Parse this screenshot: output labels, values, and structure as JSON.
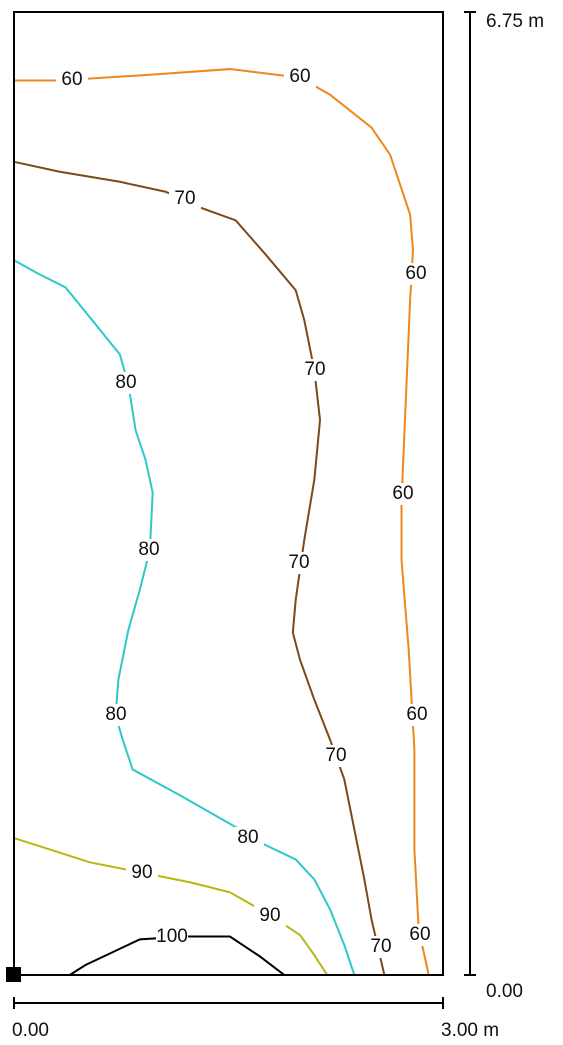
{
  "chart_data": {
    "type": "contour",
    "xlim": [
      0,
      3
    ],
    "ylim": [
      0,
      6.75
    ],
    "xticks": [
      {
        "value": 0,
        "label": "0.00"
      },
      {
        "value": 3,
        "label": "3.00 m"
      }
    ],
    "yticks": [
      {
        "value": 0,
        "label": "0.00"
      },
      {
        "value": 6.75,
        "label": "6.75 m"
      }
    ],
    "contours": [
      {
        "level": 60,
        "color": "#f0861e",
        "x": [
          0,
          0.32,
          0.95,
          1.51,
          2.0,
          2.21,
          2.5,
          2.63,
          2.77,
          2.79,
          2.77,
          2.74,
          2.71,
          2.71,
          2.76,
          2.8,
          2.8,
          2.83,
          2.9
        ],
        "y": [
          6.27,
          6.27,
          6.31,
          6.35,
          6.29,
          6.17,
          5.94,
          5.75,
          5.33,
          5.08,
          4.73,
          4.03,
          3.33,
          2.91,
          2.28,
          1.58,
          0.88,
          0.32,
          0
        ]
      },
      {
        "level": 70,
        "color": "#7a4a1a",
        "x": [
          0,
          0.32,
          0.74,
          1.06,
          1.3,
          1.55,
          1.76,
          1.97,
          2.03,
          2.1,
          2.14,
          2.1,
          2.03,
          1.97,
          1.95,
          2.0,
          2.1,
          2.21,
          2.31,
          2.38,
          2.45,
          2.5,
          2.59
        ],
        "y": [
          5.7,
          5.63,
          5.56,
          5.49,
          5.38,
          5.29,
          5.05,
          4.8,
          4.59,
          4.24,
          3.89,
          3.47,
          3.05,
          2.63,
          2.4,
          2.21,
          1.93,
          1.65,
          1.37,
          1.02,
          0.67,
          0.39,
          0
        ]
      },
      {
        "level": 80,
        "color": "#2ec8c8",
        "x": [
          0,
          0.18,
          0.36,
          0.53,
          0.74,
          0.8,
          0.85,
          0.92,
          0.97,
          0.95,
          0.88,
          0.8,
          0.73,
          0.71,
          0.76,
          0.83,
          1.16,
          1.58,
          1.76,
          1.97,
          2.1,
          2.21,
          2.31,
          2.38
        ],
        "y": [
          5.01,
          4.91,
          4.82,
          4.61,
          4.35,
          4.14,
          3.82,
          3.61,
          3.38,
          2.98,
          2.7,
          2.42,
          2.07,
          1.82,
          1.65,
          1.44,
          1.26,
          1.02,
          0.91,
          0.81,
          0.67,
          0.46,
          0.21,
          0
        ]
      },
      {
        "level": 90,
        "color": "#b5b814",
        "x": [
          0,
          0.25,
          0.53,
          0.88,
          1.23,
          1.51,
          1.79,
          2.0,
          2.1,
          2.19
        ],
        "y": [
          0.96,
          0.88,
          0.79,
          0.72,
          0.65,
          0.58,
          0.42,
          0.28,
          0.14,
          0
        ]
      },
      {
        "level": 100,
        "color": "#000000",
        "x": [
          0.39,
          0.5,
          0.88,
          1.2,
          1.51,
          1.72,
          1.89
        ],
        "y": [
          0,
          0.07,
          0.25,
          0.27,
          0.27,
          0.13,
          0
        ]
      }
    ]
  }
}
